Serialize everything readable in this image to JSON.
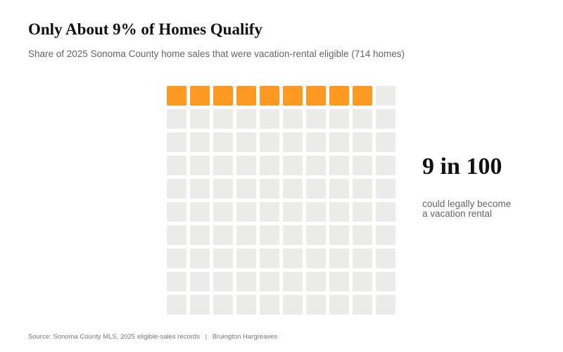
{
  "header": {
    "title": "Only About 9% of Homes Qualify",
    "subtitle": "Share of 2025 Sonoma County home sales that were vacation-rental eligible (714 homes)"
  },
  "callout": {
    "stat": "9 in 100",
    "caption_line1": "could legally become",
    "caption_line2": "a vacation rental"
  },
  "footer": {
    "source": "Source: Sonoma County MLS, 2025 eligible-sales records",
    "separator": "|",
    "author": "Bruington Hargreaves"
  },
  "chart_data": {
    "type": "waffle",
    "total": 100,
    "rows": 10,
    "columns": 10,
    "filled": 9,
    "filled_color": "#FF9922",
    "empty_color": "#EBEBE9"
  }
}
